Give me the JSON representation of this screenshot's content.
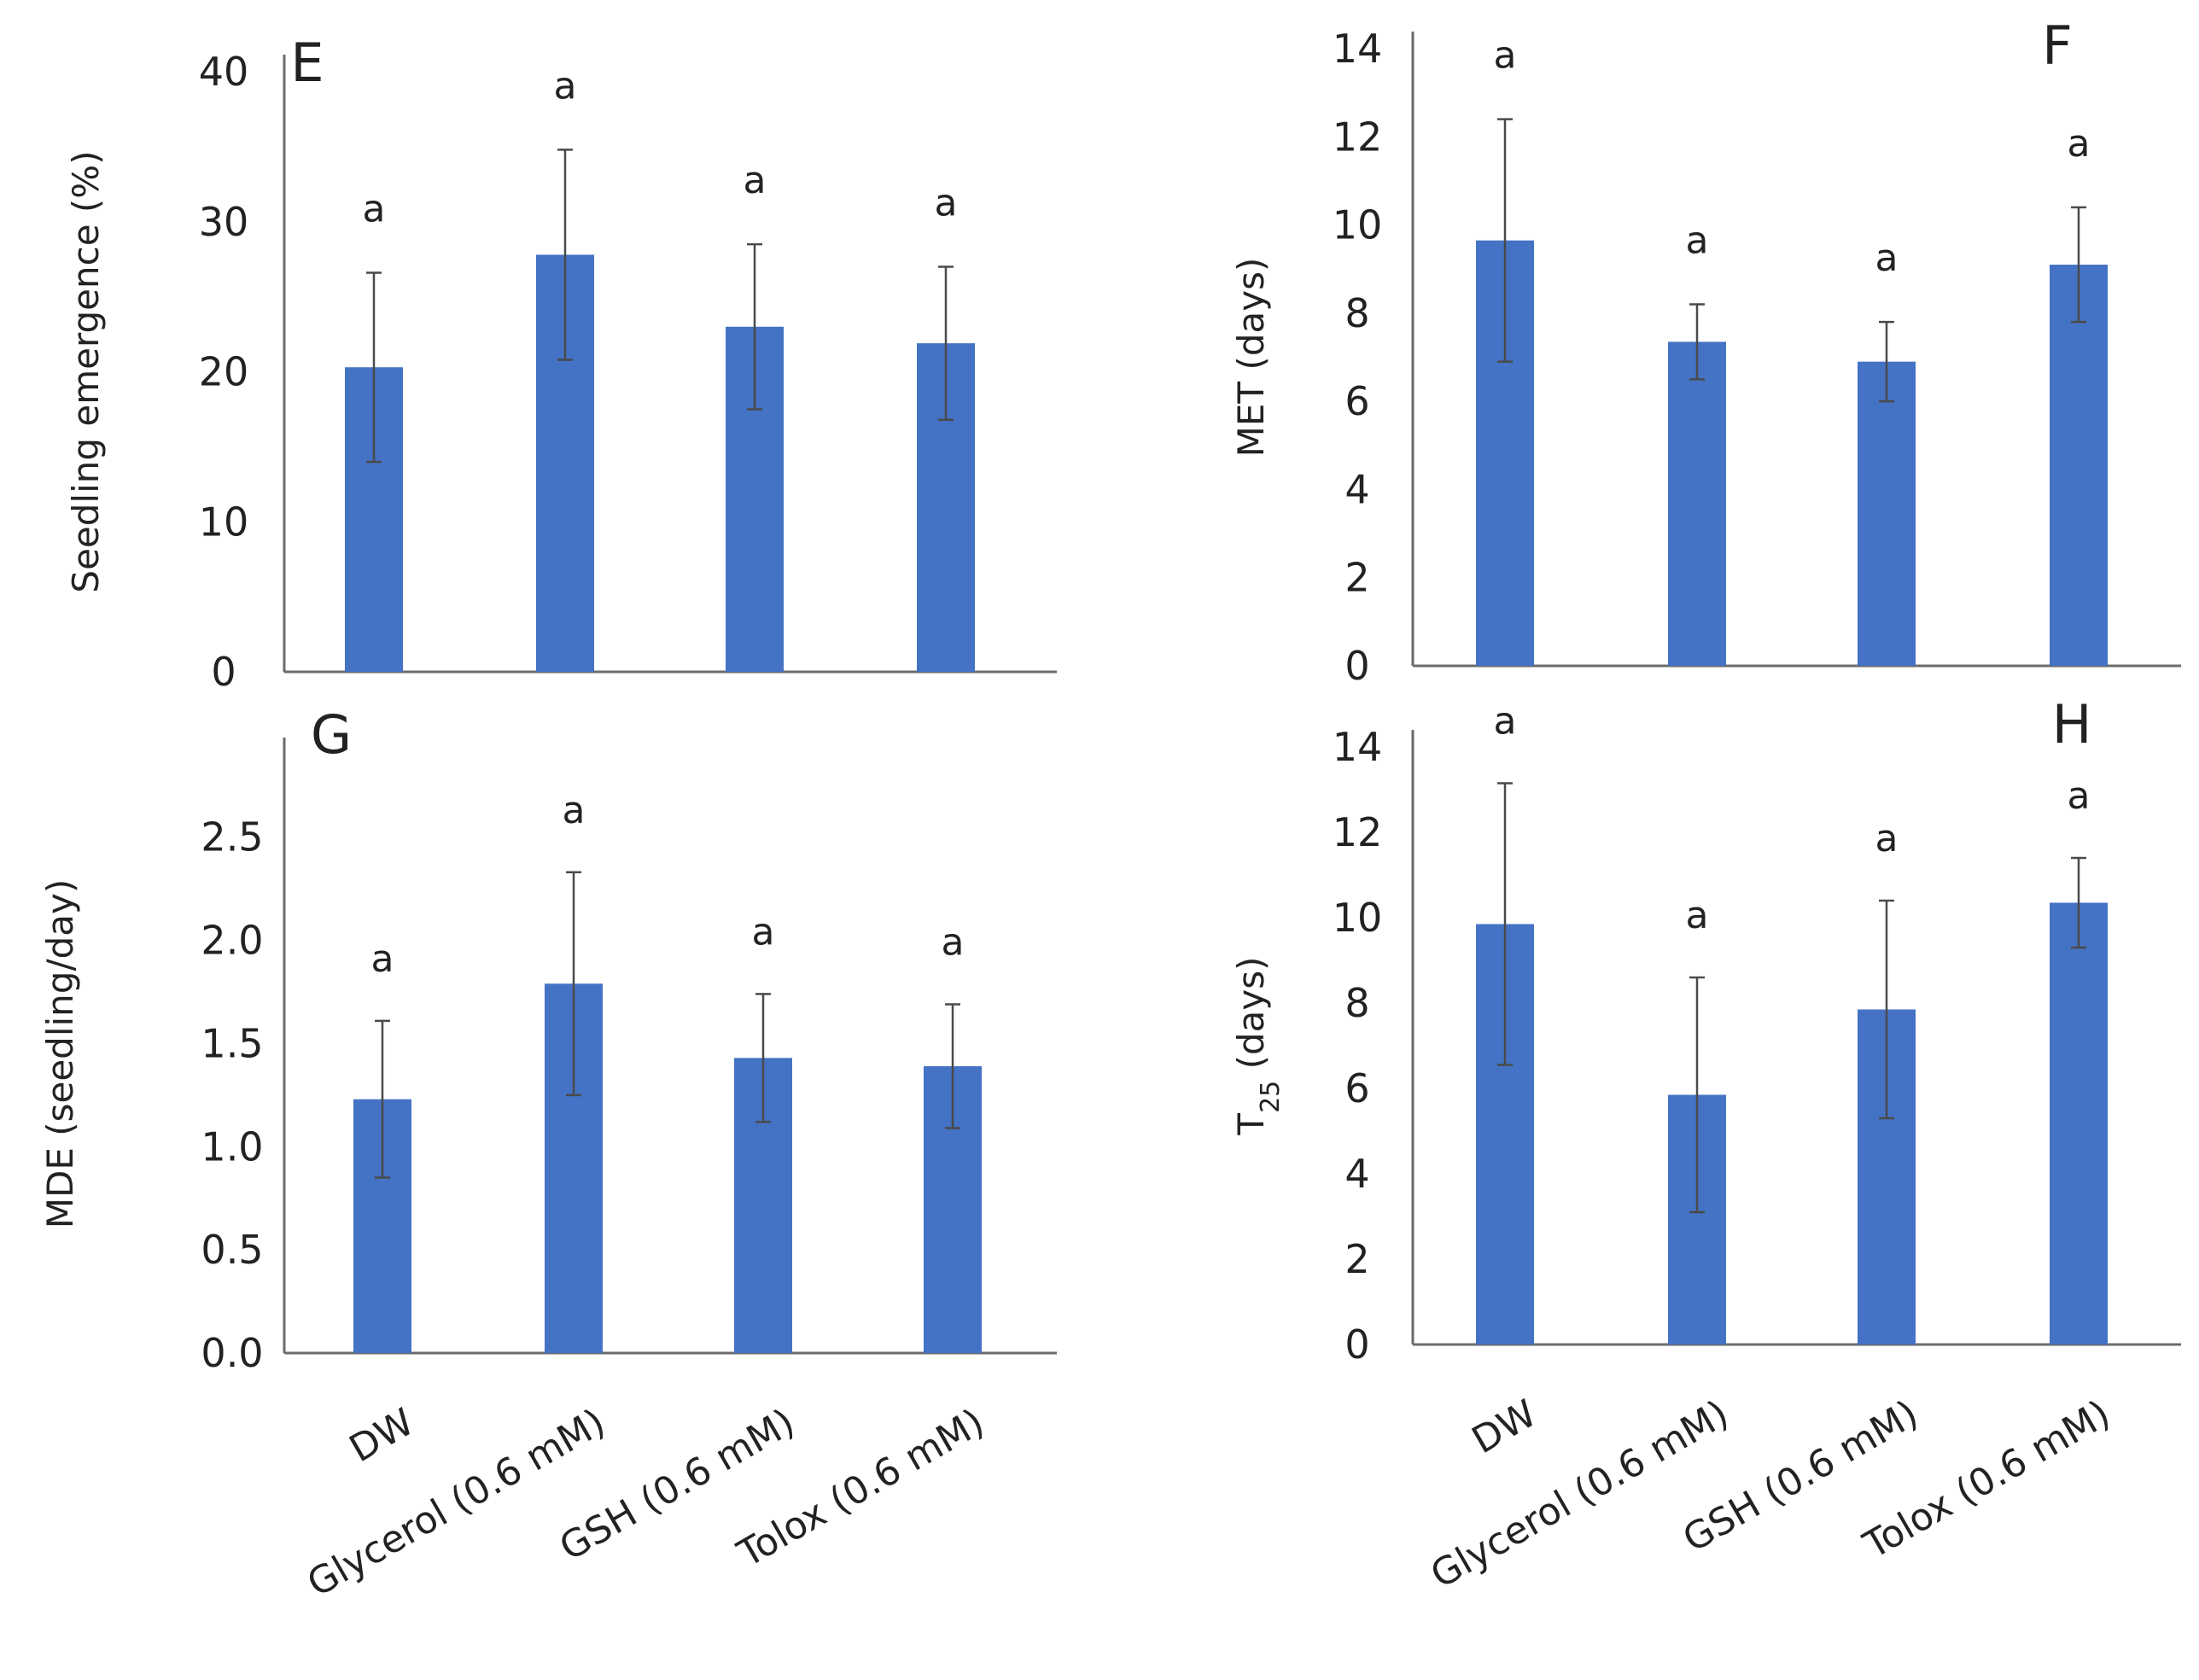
{
  "figure_title": "",
  "colors": {
    "bar": "#4472C4",
    "axis": "#6b6b6b",
    "error": "#4a4a4a",
    "text": "#222222"
  },
  "chart_data": [
    {
      "panel": "E",
      "type": "bar",
      "categories": [
        "DW",
        "Glycerol (0.6 mM)",
        "GSH (0.6 mM)",
        "Tolox (0.6 mM)"
      ],
      "values": [
        20.3,
        27.8,
        23.0,
        21.9
      ],
      "errors": [
        6.3,
        7.0,
        5.5,
        5.1
      ],
      "letters": [
        "a",
        "a",
        "a",
        "a"
      ],
      "ylabel": "Seedling emergence (%)",
      "yticks": [
        "0",
        "10",
        "20",
        "30",
        "40"
      ],
      "ylim": [
        0,
        40
      ],
      "xlabel": ""
    },
    {
      "panel": "F",
      "type": "bar",
      "categories": [
        "DW",
        "Glycerol (0.6 mM)",
        "GSH (0.6 mM)",
        "Tolox (0.6 mM)"
      ],
      "values": [
        9.65,
        7.35,
        6.9,
        9.1
      ],
      "errors": [
        2.75,
        0.85,
        0.9,
        1.3
      ],
      "letters": [
        "a",
        "a",
        "a",
        "a"
      ],
      "ylabel": "MET (days)",
      "yticks": [
        "0",
        "2",
        "4",
        "6",
        "8",
        "10",
        "12",
        "14"
      ],
      "ylim": [
        0,
        14
      ],
      "xlabel": ""
    },
    {
      "panel": "G",
      "type": "bar",
      "categories": [
        "DW",
        "Glycerol (0.6 mM)",
        "GSH (0.6 mM)",
        "Tolox (0.6 mM)"
      ],
      "values": [
        1.23,
        1.79,
        1.43,
        1.39
      ],
      "errors": [
        0.38,
        0.54,
        0.31,
        0.3
      ],
      "letters": [
        "a",
        "a",
        "a",
        "a"
      ],
      "ylabel": "MDE (seedling/day)",
      "yticks": [
        "0.0",
        "0.5",
        "1.0",
        "1.5",
        "2.0",
        "2.5"
      ],
      "ylim": [
        0,
        2.9
      ],
      "xlabel": ""
    },
    {
      "panel": "H",
      "type": "bar",
      "categories": [
        "DW",
        "Glycerol (0.6 mM)",
        "GSH (0.6 mM)",
        "Tolox (0.6 mM)"
      ],
      "values": [
        9.85,
        5.85,
        7.85,
        10.35
      ],
      "errors": [
        3.3,
        2.75,
        2.55,
        1.05
      ],
      "letters": [
        "a",
        "a",
        "a",
        "a"
      ],
      "ylabel": "T",
      "ylabel_sub": "25",
      "ylabel_suffix": " (days)",
      "yticks": [
        "0",
        "2",
        "4",
        "6",
        "8",
        "10",
        "12",
        "14"
      ],
      "ylim": [
        0,
        14
      ],
      "xlabel": ""
    }
  ]
}
